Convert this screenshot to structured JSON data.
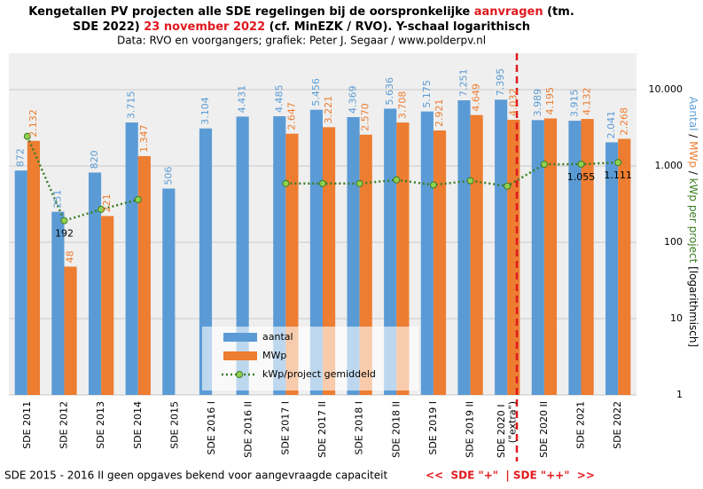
{
  "chart_data": {
    "type": "bar",
    "title": [
      [
        "Kengetallen  PV projecten alle SDE regelingen  bij de oorspronkelijke  ",
        "aanvragen",
        " (tm."
      ],
      [
        "SDE 2022) ",
        "23 november 2022",
        " (cf. MinEZK  / RVO). Y-schaal logarithisch"
      ]
    ],
    "subtitle": "Data: RVO  en voorgangers;  grafiek: Peter J. Segaar / www.polderpv.nl",
    "y_label": [
      "Aantal",
      " / ",
      "MWp",
      " / ",
      "kWp per project",
      " [logarithmisch]"
    ],
    "footnote": "SDE 2015  - 2016 II geen opgaves bekend voor aangevraagde capaciteit",
    "annotation": "<<  SDE \"+\"  | SDE \"++\"  >>",
    "categories": [
      "SDE 2011",
      "SDE 2012",
      "SDE 2013",
      "SDE 2014",
      "SDE 2015",
      "SDE 2016 I",
      "SDE 2016 II",
      "SDE 2017 I",
      "SDE 2017 II",
      "SDE 2018 I",
      "SDE 2018 II",
      "SDE 2019 I",
      "SDE 2019 II",
      "SDE 2020 I (\"extra\")",
      "SDE 2020 II",
      "SDE 2021",
      "SDE 2022"
    ],
    "series": [
      {
        "name": "aantal",
        "color": "#5b9bd5",
        "values": [
          872,
          251,
          820,
          3715,
          506,
          3104,
          4431,
          4485,
          5456,
          4369,
          5636,
          5175,
          7251,
          7395,
          3989,
          3915,
          2041
        ],
        "value_labels": [
          "872",
          "251",
          "820",
          "3.715",
          "506",
          "3.104",
          "4.431",
          "4.485",
          "5.456",
          "4.369",
          "5.636",
          "5.175",
          "7.251",
          "7.395",
          "3.989",
          "3.915",
          "2.041"
        ]
      },
      {
        "name": "MWp",
        "color": "#ed7d31",
        "values": [
          2132,
          48,
          221,
          1347,
          null,
          null,
          null,
          2647,
          3221,
          2570,
          3708,
          2921,
          4649,
          4032,
          4195,
          4132,
          2268
        ],
        "value_labels": [
          "2.132",
          "48",
          "221",
          "1.347",
          null,
          null,
          null,
          "2.647",
          "3.221",
          "2.570",
          "3.708",
          "2.921",
          "4.649",
          "4.032",
          "4.195",
          "4.132",
          "2.268"
        ]
      },
      {
        "name": "kWp/project gemiddeld",
        "type": "line",
        "color": "#3a7d22",
        "marker_color": "#92d050",
        "values": [
          2445,
          192,
          270,
          363,
          null,
          null,
          null,
          590,
          590,
          588,
          658,
          564,
          641,
          545,
          1052,
          1055,
          1111
        ],
        "value_labels": [
          null,
          "192",
          null,
          null,
          null,
          null,
          null,
          null,
          null,
          null,
          null,
          null,
          null,
          null,
          null,
          "1.055",
          "1.111"
        ]
      }
    ],
    "log_scale": true,
    "ylim": [
      1,
      30000
    ],
    "yticks": [
      1,
      10,
      100,
      {
        "value": 1000,
        "label": "1.000"
      },
      {
        "value": 10000,
        "label": "10.000"
      }
    ],
    "grid": true,
    "legend": "bottom"
  }
}
